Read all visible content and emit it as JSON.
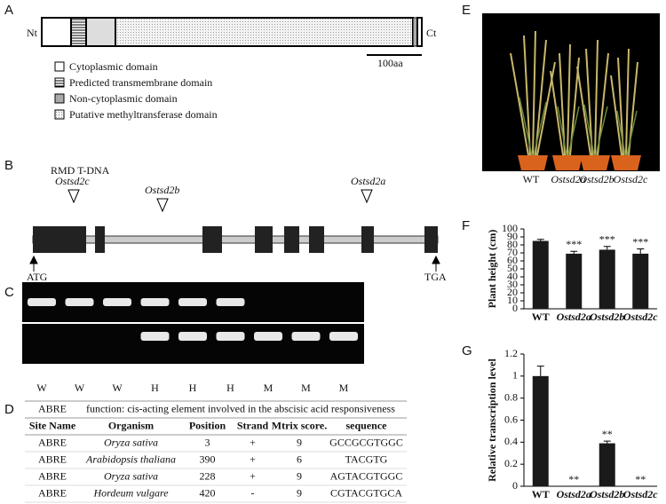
{
  "panel_labels": [
    "A",
    "B",
    "C",
    "D",
    "E",
    "F",
    "G"
  ],
  "domain_diagram": {
    "n_term": "Nt",
    "c_term": "Ct",
    "scale_bar": "100aa",
    "legend": [
      "Cytoplasmic domain",
      "Predicted transmembrane domain",
      "Non-cytoplasmic domain",
      "Putative methyltransferase domain"
    ]
  },
  "gene_structure": {
    "rmd": "RMD T-DNA",
    "insertion_c": "Ostsd2c",
    "insertion_b": "Ostsd2b",
    "insertion_a": "Ostsd2a",
    "start": "ATG",
    "end": "TGA"
  },
  "gel": {
    "lanes": [
      "W",
      "W",
      "W",
      "H",
      "H",
      "H",
      "M",
      "M",
      "M"
    ]
  },
  "table": {
    "rows": [
      [
        "ABRE",
        "function: cis-acting element involved in the abscisic acid responsiveness"
      ],
      [
        "Site Name",
        "Organism",
        "Position",
        "Strand",
        "Mtrix score.",
        "sequence"
      ],
      [
        "ABRE",
        "Oryza sativa",
        "3",
        "+",
        "9",
        "GCCGCGTGGC"
      ],
      [
        "ABRE",
        "Arabidopsis thaliana",
        "390",
        "+",
        "6",
        "TACGTG"
      ],
      [
        "ABRE",
        "Oryza sativa",
        "228",
        "+",
        "9",
        "AGTACGTGGC"
      ],
      [
        "ABRE",
        "Hordeum vulgare",
        "420",
        "-",
        "9",
        "CGTACGTGCA"
      ]
    ]
  },
  "photo": {
    "labels": [
      "WT",
      "Ostsd2a",
      "Ostsd2b",
      "Ostsd2c"
    ]
  },
  "chart_data": [
    {
      "type": "bar",
      "y_label": "Plant height (cm)",
      "categories": [
        "WT",
        "Ostsd2a",
        "Ostsd2b",
        "Ostsd2c"
      ],
      "values": [
        85,
        69,
        74,
        69
      ],
      "errors": [
        2,
        3,
        4,
        6
      ],
      "significance": [
        null,
        "***",
        "***",
        "***"
      ],
      "color": "#1a1a1a",
      "ylim": [
        0,
        100
      ],
      "yticks": [
        0,
        10,
        20,
        30,
        40,
        50,
        60,
        70,
        80,
        90,
        100
      ]
    },
    {
      "type": "bar",
      "y_label": "Relative transcription level",
      "categories": [
        "WT",
        "Ostsd2a",
        "Ostsd2b",
        "Ostsd2c"
      ],
      "values": [
        1,
        0,
        0.39,
        0
      ],
      "errors": [
        0.09,
        0,
        0.02,
        0
      ],
      "significance": [
        null,
        "**",
        "**",
        "**"
      ],
      "color": "#1a1a1a",
      "ylim": [
        0,
        1.2
      ],
      "yticks": [
        0,
        0.2,
        0.4,
        0.6,
        0.8,
        1,
        1.2
      ]
    }
  ]
}
